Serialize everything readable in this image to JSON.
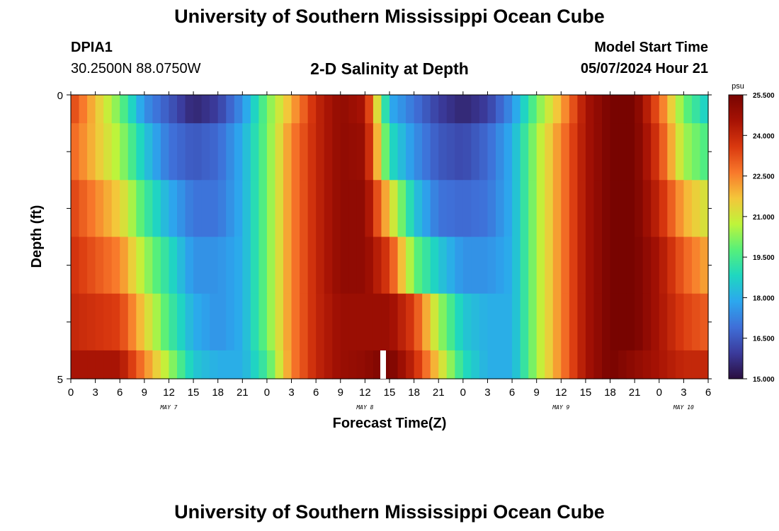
{
  "header": {
    "title": "University of Southern Mississippi Ocean Cube",
    "station_id": "DPIA1",
    "station_coords": "30.2500N  88.0750W",
    "chart_title": "2-D Salinity at Depth",
    "model_start_label": "Model Start Time",
    "model_start_value": "05/07/2024 Hour 21"
  },
  "footer": {
    "title": "University of Southern Mississippi Ocean Cube"
  },
  "chart_data": {
    "type": "heatmap",
    "title": "2-D Salinity at Depth",
    "xlabel": "Forecast Time(Z)",
    "ylabel": "Depth (ft)",
    "x_tick_labels": [
      "0",
      "3",
      "6",
      "9",
      "12",
      "15",
      "18",
      "21",
      "0",
      "3",
      "6",
      "9",
      "12",
      "15",
      "18",
      "21",
      "0",
      "3",
      "6",
      "9",
      "12",
      "15",
      "18",
      "21",
      "0",
      "3",
      "6"
    ],
    "day_labels": [
      "MAY 7",
      "MAY 8",
      "MAY 9",
      "MAY 10"
    ],
    "y_tick_labels": [
      "0",
      "5"
    ],
    "ylim": [
      0,
      5
    ],
    "colorbar": {
      "unit": "psu",
      "min": 15.0,
      "max": 25.5,
      "tick_labels": [
        "25.500",
        "24.000",
        "22.500",
        "21.000",
        "19.500",
        "18.000",
        "16.500",
        "15.000"
      ]
    },
    "x_hours": [
      0,
      6,
      9,
      12,
      15,
      18,
      21,
      24,
      27,
      30,
      33,
      36,
      39,
      42,
      45,
      48,
      51,
      54,
      57,
      60,
      63,
      66,
      69,
      72,
      75,
      78
    ],
    "rows": [
      {
        "depth": 0.5,
        "salinity": [
          23.5,
          20.0,
          17.5,
          16.5,
          15.5,
          16.0,
          17.5,
          20.0,
          22.0,
          24.0,
          25.0,
          24.5,
          18.0,
          17.0,
          16.0,
          15.5,
          16.0,
          17.5,
          20.0,
          22.0,
          24.5,
          25.5,
          25.5,
          23.0,
          20.0,
          18.5
        ]
      },
      {
        "depth": 1.5,
        "salinity": [
          23.0,
          20.5,
          18.5,
          17.0,
          16.5,
          16.8,
          18.0,
          20.0,
          22.5,
          24.0,
          25.0,
          24.8,
          19.0,
          17.5,
          16.5,
          16.2,
          16.8,
          18.0,
          20.5,
          22.5,
          24.5,
          25.5,
          25.5,
          23.5,
          20.5,
          19.5
        ]
      },
      {
        "depth": 2.5,
        "salinity": [
          23.5,
          21.5,
          19.5,
          18.0,
          17.0,
          17.0,
          18.0,
          20.0,
          22.5,
          24.0,
          25.0,
          25.0,
          21.5,
          18.5,
          17.0,
          16.8,
          17.0,
          18.0,
          20.5,
          22.5,
          24.5,
          25.5,
          25.5,
          24.0,
          22.0,
          21.0
        ]
      },
      {
        "depth": 3.5,
        "salinity": [
          23.8,
          22.5,
          20.5,
          19.0,
          17.5,
          17.5,
          18.0,
          20.0,
          22.5,
          24.0,
          25.0,
          25.0,
          23.5,
          20.0,
          18.5,
          17.5,
          17.5,
          18.0,
          20.5,
          22.5,
          24.5,
          25.5,
          25.5,
          24.5,
          23.0,
          22.0
        ]
      },
      {
        "depth": 4.5,
        "salinity": [
          24.0,
          23.5,
          21.5,
          19.5,
          18.0,
          17.5,
          18.0,
          20.0,
          22.5,
          24.0,
          24.8,
          24.8,
          24.8,
          23.5,
          20.5,
          18.5,
          18.0,
          18.0,
          20.5,
          22.5,
          24.5,
          25.5,
          25.5,
          24.5,
          23.5,
          23.0
        ]
      },
      {
        "depth": 5.0,
        "salinity": [
          24.5,
          24.5,
          22.5,
          20.5,
          18.5,
          18.0,
          18.0,
          19.5,
          22.5,
          24.0,
          24.8,
          25.0,
          25.5,
          24.0,
          21.5,
          19.0,
          18.0,
          18.0,
          20.5,
          22.5,
          24.5,
          25.5,
          25.0,
          24.5,
          24.0,
          24.0
        ]
      }
    ]
  }
}
